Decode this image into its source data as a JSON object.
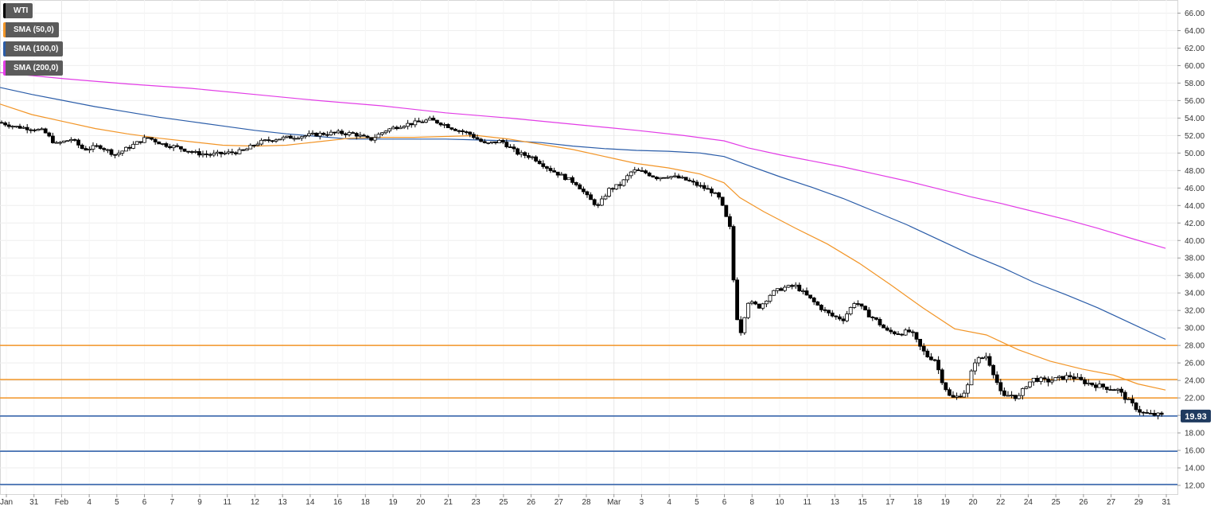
{
  "chart_data": {
    "type": "candlestick",
    "instrument": "WTI",
    "legend": [
      {
        "label": "WTI",
        "color": "#000000"
      },
      {
        "label": "SMA (50,0)",
        "color": "#f29527"
      },
      {
        "label": "SMA (100,0)",
        "color": "#2a5ca8"
      },
      {
        "label": "SMA (200,0)",
        "color": "#e23ce6"
      }
    ],
    "ylim": [
      11.0,
      67.5
    ],
    "y_ticks": [
      "12.00",
      "14.00",
      "16.00",
      "18.00",
      "20.00",
      "22.00",
      "24.00",
      "26.00",
      "28.00",
      "30.00",
      "32.00",
      "34.00",
      "36.00",
      "38.00",
      "40.00",
      "42.00",
      "44.00",
      "46.00",
      "48.00",
      "50.00",
      "52.00",
      "54.00",
      "56.00",
      "58.00",
      "60.00",
      "62.00",
      "64.00",
      "66.00"
    ],
    "x_ticks": [
      "Jan",
      "31",
      "Feb",
      "4",
      "5",
      "6",
      "7",
      "9",
      "11",
      "12",
      "13",
      "14",
      "16",
      "18",
      "19",
      "20",
      "21",
      "23",
      "25",
      "26",
      "27",
      "28",
      "Mar",
      "3",
      "4",
      "5",
      "6",
      "8",
      "10",
      "11",
      "13",
      "15",
      "17",
      "18",
      "19",
      "20",
      "22",
      "24",
      "25",
      "26",
      "27",
      "29",
      "31"
    ],
    "last_price": "19.93",
    "last_price_value": 19.93,
    "horizontal_levels": [
      {
        "value": 28.0,
        "color": "#f29527"
      },
      {
        "value": 24.1,
        "color": "#f29527"
      },
      {
        "value": 22.0,
        "color": "#f29527"
      },
      {
        "value": 19.93,
        "color": "#2a5ca8"
      },
      {
        "value": 15.9,
        "color": "#2a5ca8"
      },
      {
        "value": 12.1,
        "color": "#2a5ca8"
      }
    ],
    "price_path": [
      [
        0,
        53.5
      ],
      [
        20,
        53.0
      ],
      [
        40,
        52.8
      ],
      [
        55,
        52.5
      ],
      [
        70,
        51.0
      ],
      [
        90,
        51.6
      ],
      [
        105,
        50.4
      ],
      [
        125,
        50.8
      ],
      [
        145,
        49.8
      ],
      [
        165,
        50.8
      ],
      [
        185,
        51.8
      ],
      [
        205,
        51.0
      ],
      [
        225,
        50.6
      ],
      [
        245,
        50.0
      ],
      [
        265,
        49.8
      ],
      [
        285,
        50.0
      ],
      [
        305,
        50.2
      ],
      [
        325,
        51.2
      ],
      [
        345,
        51.6
      ],
      [
        365,
        51.8
      ],
      [
        385,
        52.0
      ],
      [
        405,
        52.2
      ],
      [
        425,
        52.3
      ],
      [
        445,
        52.2
      ],
      [
        465,
        51.5
      ],
      [
        485,
        52.6
      ],
      [
        505,
        53.2
      ],
      [
        525,
        53.5
      ],
      [
        540,
        53.8
      ],
      [
        555,
        53.4
      ],
      [
        570,
        52.8
      ],
      [
        590,
        52.2
      ],
      [
        610,
        51.0
      ],
      [
        630,
        51.4
      ],
      [
        650,
        50.0
      ],
      [
        670,
        49.5
      ],
      [
        690,
        48.2
      ],
      [
        710,
        47.2
      ],
      [
        725,
        46.5
      ],
      [
        740,
        44.8
      ],
      [
        752,
        43.9
      ],
      [
        765,
        45.8
      ],
      [
        780,
        46.4
      ],
      [
        795,
        48.0
      ],
      [
        810,
        47.8
      ],
      [
        825,
        47.2
      ],
      [
        840,
        47.4
      ],
      [
        860,
        47.0
      ],
      [
        880,
        46.2
      ],
      [
        895,
        45.6
      ],
      [
        905,
        44.7
      ],
      [
        912,
        42.8
      ],
      [
        918,
        41.3
      ],
      [
        924,
        32.6
      ],
      [
        930,
        29.2
      ],
      [
        940,
        33.0
      ],
      [
        955,
        32.4
      ],
      [
        970,
        34.0
      ],
      [
        985,
        34.6
      ],
      [
        1000,
        34.8
      ],
      [
        1015,
        33.6
      ],
      [
        1030,
        32.4
      ],
      [
        1045,
        31.4
      ],
      [
        1060,
        31.0
      ],
      [
        1075,
        33.1
      ],
      [
        1090,
        31.6
      ],
      [
        1100,
        31.0
      ],
      [
        1115,
        29.6
      ],
      [
        1130,
        29.4
      ],
      [
        1145,
        29.6
      ],
      [
        1155,
        28.0
      ],
      [
        1165,
        26.8
      ],
      [
        1175,
        26.4
      ],
      [
        1185,
        23.8
      ],
      [
        1195,
        21.9
      ],
      [
        1205,
        22.2
      ],
      [
        1215,
        22.9
      ],
      [
        1225,
        26.2
      ],
      [
        1240,
        26.8
      ],
      [
        1250,
        24.6
      ],
      [
        1260,
        22.0
      ],
      [
        1270,
        22.4
      ],
      [
        1280,
        22.0
      ],
      [
        1290,
        23.5
      ],
      [
        1300,
        24.2
      ],
      [
        1315,
        23.9
      ],
      [
        1330,
        24.2
      ],
      [
        1345,
        24.5
      ],
      [
        1360,
        23.9
      ],
      [
        1375,
        23.5
      ],
      [
        1390,
        23.2
      ],
      [
        1405,
        22.9
      ],
      [
        1420,
        21.5
      ],
      [
        1435,
        20.3
      ],
      [
        1445,
        20.1
      ],
      [
        1455,
        20.05
      ],
      [
        1463,
        19.93
      ]
    ],
    "sma_50": [
      [
        0,
        55.6
      ],
      [
        40,
        54.4
      ],
      [
        80,
        53.6
      ],
      [
        120,
        52.8
      ],
      [
        160,
        52.2
      ],
      [
        200,
        51.7
      ],
      [
        240,
        51.3
      ],
      [
        280,
        50.9
      ],
      [
        320,
        50.8
      ],
      [
        360,
        50.9
      ],
      [
        400,
        51.3
      ],
      [
        440,
        51.7
      ],
      [
        480,
        51.8
      ],
      [
        520,
        51.8
      ],
      [
        560,
        51.9
      ],
      [
        600,
        52.0
      ],
      [
        640,
        51.6
      ],
      [
        680,
        51.0
      ],
      [
        720,
        50.4
      ],
      [
        760,
        49.6
      ],
      [
        800,
        48.8
      ],
      [
        840,
        48.3
      ],
      [
        880,
        47.6
      ],
      [
        910,
        46.6
      ],
      [
        930,
        44.9
      ],
      [
        960,
        43.3
      ],
      [
        1000,
        41.4
      ],
      [
        1040,
        39.6
      ],
      [
        1080,
        37.4
      ],
      [
        1120,
        34.9
      ],
      [
        1160,
        32.3
      ],
      [
        1200,
        29.9
      ],
      [
        1240,
        29.2
      ],
      [
        1280,
        27.5
      ],
      [
        1320,
        26.2
      ],
      [
        1360,
        25.3
      ],
      [
        1400,
        24.6
      ],
      [
        1430,
        23.6
      ],
      [
        1465,
        22.9
      ]
    ],
    "sma_100": [
      [
        0,
        57.5
      ],
      [
        40,
        56.7
      ],
      [
        80,
        56.0
      ],
      [
        120,
        55.3
      ],
      [
        160,
        54.7
      ],
      [
        200,
        54.1
      ],
      [
        240,
        53.6
      ],
      [
        280,
        53.1
      ],
      [
        320,
        52.6
      ],
      [
        360,
        52.2
      ],
      [
        400,
        51.9
      ],
      [
        440,
        51.6
      ],
      [
        480,
        51.6
      ],
      [
        520,
        51.6
      ],
      [
        560,
        51.6
      ],
      [
        600,
        51.5
      ],
      [
        640,
        51.4
      ],
      [
        680,
        51.2
      ],
      [
        720,
        50.8
      ],
      [
        760,
        50.5
      ],
      [
        800,
        50.3
      ],
      [
        840,
        50.2
      ],
      [
        880,
        50.0
      ],
      [
        910,
        49.6
      ],
      [
        940,
        48.6
      ],
      [
        980,
        47.3
      ],
      [
        1020,
        46.1
      ],
      [
        1060,
        44.8
      ],
      [
        1100,
        43.3
      ],
      [
        1140,
        41.8
      ],
      [
        1180,
        40.1
      ],
      [
        1220,
        38.4
      ],
      [
        1260,
        36.9
      ],
      [
        1300,
        35.2
      ],
      [
        1340,
        33.8
      ],
      [
        1380,
        32.3
      ],
      [
        1420,
        30.6
      ],
      [
        1465,
        28.7
      ]
    ],
    "sma_200": [
      [
        0,
        59.2
      ],
      [
        80,
        58.5
      ],
      [
        160,
        57.9
      ],
      [
        240,
        57.4
      ],
      [
        320,
        56.7
      ],
      [
        400,
        56.0
      ],
      [
        480,
        55.4
      ],
      [
        560,
        54.6
      ],
      [
        640,
        54.0
      ],
      [
        720,
        53.3
      ],
      [
        800,
        52.6
      ],
      [
        860,
        52.0
      ],
      [
        910,
        51.4
      ],
      [
        940,
        50.6
      ],
      [
        980,
        49.8
      ],
      [
        1020,
        49.1
      ],
      [
        1060,
        48.4
      ],
      [
        1100,
        47.6
      ],
      [
        1140,
        46.8
      ],
      [
        1180,
        45.9
      ],
      [
        1220,
        45.0
      ],
      [
        1260,
        44.2
      ],
      [
        1300,
        43.3
      ],
      [
        1340,
        42.4
      ],
      [
        1380,
        41.4
      ],
      [
        1420,
        40.3
      ],
      [
        1465,
        39.1
      ]
    ]
  }
}
